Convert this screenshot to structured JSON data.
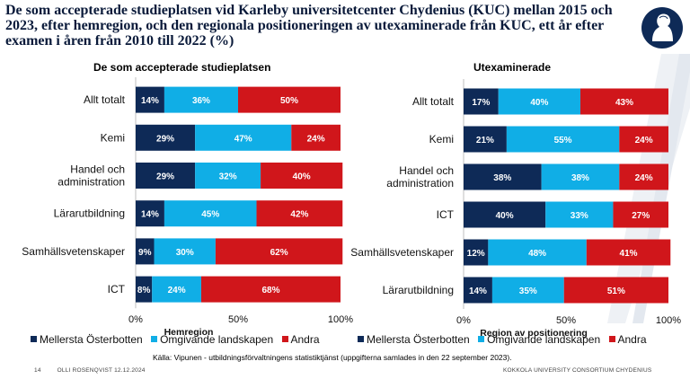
{
  "title": "De som accepterade studieplatsen vid Karleby universitetcenter Chydenius (KUC) mellan 2015 och 2023, efter hemregion, och den regionala positioneringen av utexaminerade från KUC, ett år efter examen i åren från 2010 till 2022 (%)",
  "colors": {
    "mellersta": "#0e2a57",
    "omgivande": "#10aee6",
    "andra": "#d0161b"
  },
  "chart_data": [
    {
      "type": "bar",
      "orientation": "horizontal-stacked",
      "title": "De som accepterade studieplatsen",
      "xlabel": "Hemregion",
      "xlim": [
        0,
        100
      ],
      "xticks": [
        "0%",
        "50%",
        "100%"
      ],
      "categories": [
        "Allt totalt",
        "Kemi",
        "Handel och administration",
        "Lärarutbildning",
        "Samhällsvetenskaper",
        "ICT"
      ],
      "series": [
        {
          "name": "Mellersta Österbotten",
          "values": [
            14,
            29,
            29,
            14,
            9,
            8
          ]
        },
        {
          "name": "Omgivande landskapen",
          "values": [
            36,
            47,
            32,
            45,
            30,
            24
          ]
        },
        {
          "name": "Andra",
          "values": [
            50,
            24,
            40,
            42,
            62,
            68
          ]
        }
      ]
    },
    {
      "type": "bar",
      "orientation": "horizontal-stacked",
      "title": "Utexaminerade",
      "xlabel": "Region av positionering",
      "xlim": [
        0,
        100
      ],
      "xticks": [
        "0%",
        "50%",
        "100%"
      ],
      "categories": [
        "Allt totalt",
        "Kemi",
        "Handel och administration",
        "ICT",
        "Samhällsvetenskaper",
        "Lärarutbildning"
      ],
      "series": [
        {
          "name": "Mellersta Österbotten",
          "values": [
            17,
            21,
            38,
            40,
            12,
            14
          ]
        },
        {
          "name": "Omgivande landskapen",
          "values": [
            40,
            55,
            38,
            33,
            48,
            35
          ]
        },
        {
          "name": "Andra",
          "values": [
            43,
            24,
            24,
            27,
            41,
            51
          ]
        }
      ]
    }
  ],
  "legend": [
    "Mellersta Österbotten",
    "Omgivande landskapen",
    "Andra"
  ],
  "footer": {
    "source": "Källa: Vipunen - utbildningsförvaltningens statistiktjänst (uppgifterna samlades in den 22 september 2023).",
    "page_number": "14",
    "author_date": "OLLI ROSENQVIST 12.12.2024",
    "organization": "KOKKOLA UNIVERSITY CONSORTIUM CHYDENIUS"
  }
}
